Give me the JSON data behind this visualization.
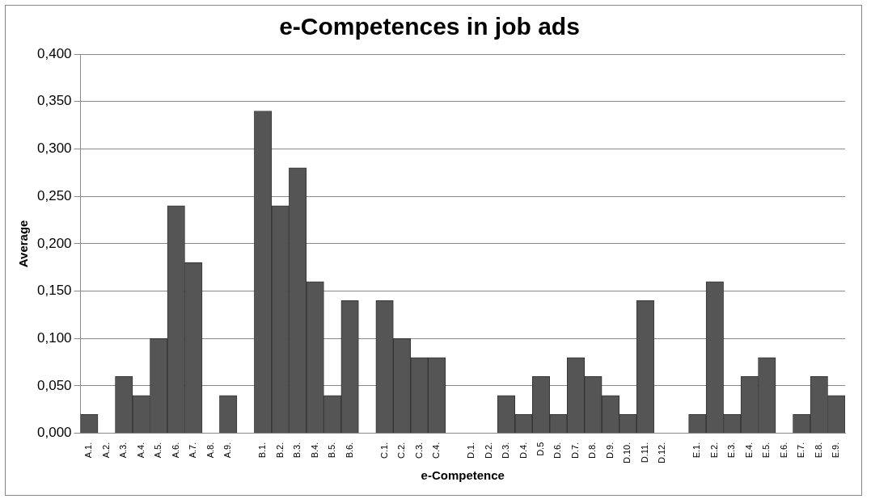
{
  "chart_data": {
    "type": "bar",
    "title": "e-Competences in job ads",
    "xlabel": "e-Competence",
    "ylabel": "Average",
    "categories": [
      "A.1.",
      "A.2.",
      "A.3.",
      "A.4.",
      "A.5.",
      "A.6.",
      "A.7.",
      "A.8.",
      "A.9.",
      null,
      "B.1.",
      "B.2.",
      "B.3.",
      "B.4.",
      "B.5.",
      "B.6.",
      null,
      "C.1.",
      "C.2.",
      "C.3.",
      "C.4.",
      null,
      "D.1.",
      "D.2.",
      "D.3.",
      "D.4.",
      "D.5",
      "D.6.",
      "D.7.",
      "D.8.",
      "D.9.",
      "D.10.",
      "D.11.",
      "D.12.",
      null,
      "E.1.",
      "E.2.",
      "E.3.",
      "E.4.",
      "E.5.",
      "E.6.",
      "E.7.",
      "E.8.",
      "E.9."
    ],
    "values": [
      0.02,
      0,
      0.06,
      0.04,
      0.1,
      0.24,
      0.18,
      0,
      0.04,
      null,
      0.34,
      0.24,
      0.28,
      0.16,
      0.04,
      0.14,
      null,
      0.14,
      0.1,
      0.08,
      0.08,
      null,
      0,
      0,
      0.04,
      0.02,
      0.06,
      0.02,
      0.08,
      0.06,
      0.04,
      0.02,
      0.14,
      0,
      null,
      0.02,
      0.16,
      0.02,
      0.06,
      0.08,
      0,
      0.02,
      0.06,
      0.04
    ],
    "color": "#555555",
    "ylim": [
      0,
      0.4
    ],
    "yticks": [
      {
        "value": 0,
        "label": "0,000"
      },
      {
        "value": 0.05,
        "label": "0,050"
      },
      {
        "value": 0.1,
        "label": "0,100"
      },
      {
        "value": 0.15,
        "label": "0,150"
      },
      {
        "value": 0.2,
        "label": "0,200"
      },
      {
        "value": 0.25,
        "label": "0,250"
      },
      {
        "value": 0.3,
        "label": "0,300"
      },
      {
        "value": 0.35,
        "label": "0,350"
      },
      {
        "value": 0.4,
        "label": "0,400"
      }
    ],
    "grid": "y",
    "legend": false
  }
}
